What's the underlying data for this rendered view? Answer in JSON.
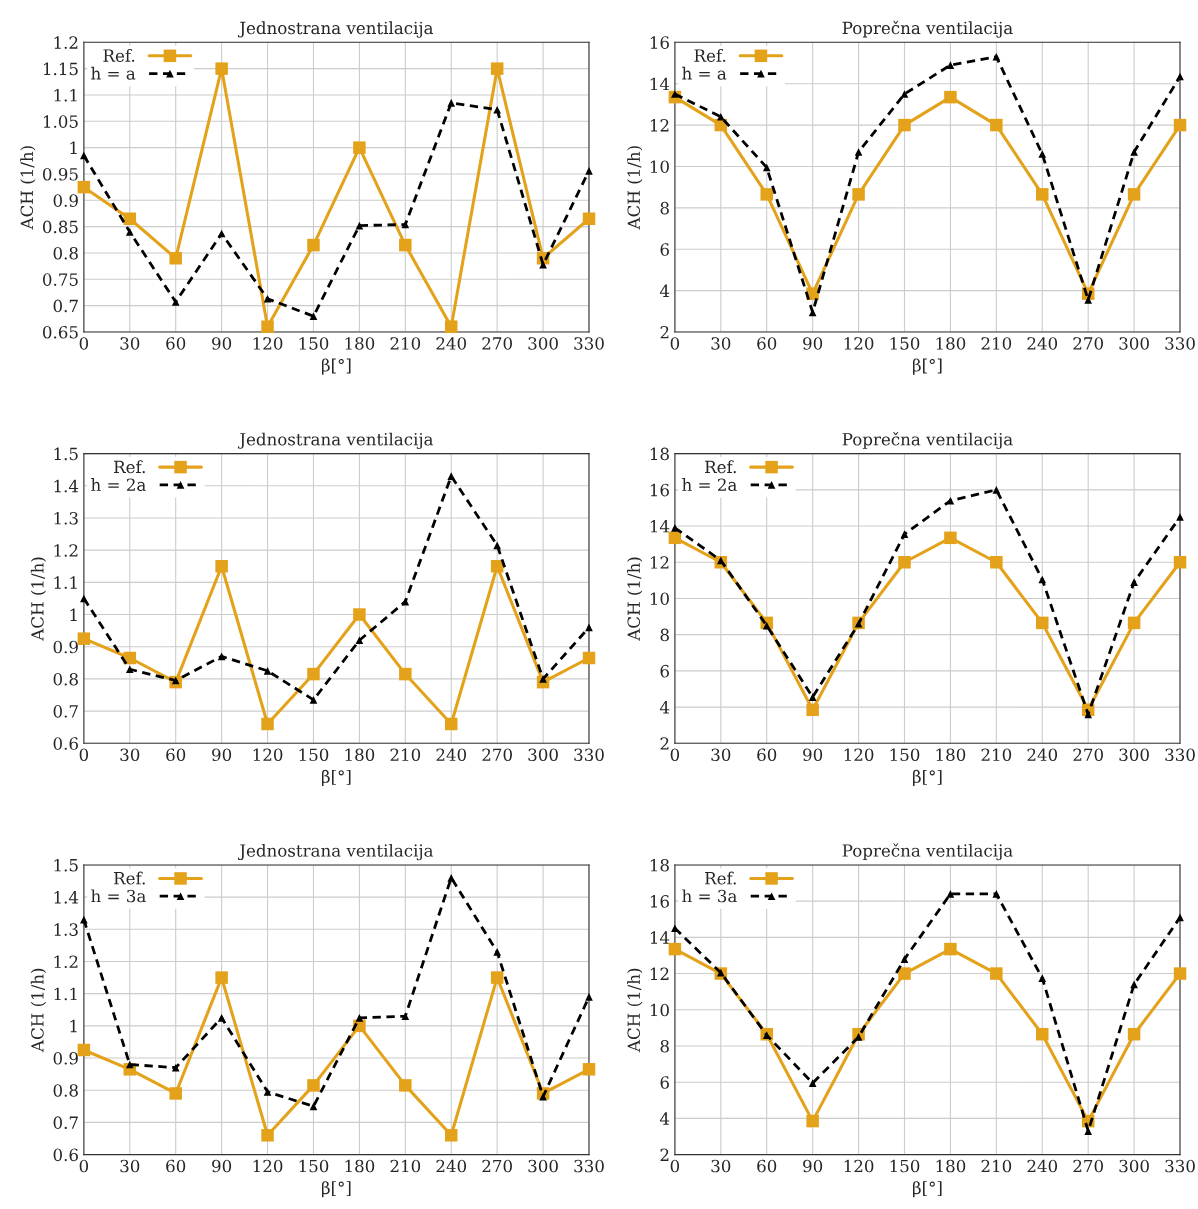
{
  "chart_data": [
    {
      "type": "line",
      "title": "Jednostrana ventilacija",
      "xlabel": "β[°]",
      "ylabel": "ACH (1/h)",
      "x": [
        0,
        30,
        60,
        90,
        120,
        150,
        180,
        210,
        240,
        270,
        300,
        330
      ],
      "xlim": [
        0,
        330
      ],
      "xticks": [
        0,
        30,
        60,
        90,
        120,
        150,
        180,
        210,
        240,
        270,
        300,
        330
      ],
      "ylim": [
        0.65,
        1.2
      ],
      "yticks": [
        0.65,
        0.7,
        0.75,
        0.8,
        0.85,
        0.9,
        0.95,
        1,
        1.05,
        1.1,
        1.15,
        1.2
      ],
      "grid": true,
      "legend": "top left",
      "series": [
        {
          "name": "Ref.",
          "color": "#e3a21a",
          "marker": "square",
          "line_style": "solid",
          "values": [
            0.925,
            0.865,
            0.79,
            1.15,
            0.66,
            0.815,
            1,
            0.815,
            0.66,
            1.15,
            0.79,
            0.865
          ]
        },
        {
          "name": "h = a",
          "color": "#000000",
          "marker": "triangle",
          "line_style": "dashed",
          "values": [
            0.985,
            0.84,
            0.707,
            0.837,
            0.713,
            0.68,
            0.852,
            0.854,
            1.085,
            1.072,
            0.778,
            0.956
          ]
        }
      ]
    },
    {
      "type": "line",
      "title": "Poprečna ventilacija",
      "xlabel": "β[°]",
      "ylabel": "ACH (1/h)",
      "x": [
        0,
        30,
        60,
        90,
        120,
        150,
        180,
        210,
        240,
        270,
        300,
        330
      ],
      "xlim": [
        0,
        330
      ],
      "xticks": [
        0,
        30,
        60,
        90,
        120,
        150,
        180,
        210,
        240,
        270,
        300,
        330
      ],
      "ylim": [
        2,
        16
      ],
      "yticks": [
        2,
        4,
        6,
        8,
        10,
        12,
        14,
        16
      ],
      "grid": true,
      "legend": "top left",
      "series": [
        {
          "name": "Ref.",
          "color": "#e3a21a",
          "marker": "square",
          "line_style": "solid",
          "values": [
            13.35,
            12,
            8.65,
            3.85,
            8.65,
            12,
            13.35,
            12,
            8.65,
            3.85,
            8.65,
            12
          ]
        },
        {
          "name": "h = a",
          "color": "#000000",
          "marker": "triangle",
          "line_style": "dashed",
          "values": [
            13.5,
            12.4,
            9.95,
            2.95,
            10.7,
            13.5,
            14.9,
            15.3,
            10.6,
            3.55,
            10.7,
            14.35
          ]
        }
      ]
    },
    {
      "type": "line",
      "title": "Jednostrana ventilacija",
      "xlabel": "β[°]",
      "ylabel": "ACH (1/h)",
      "x": [
        0,
        30,
        60,
        90,
        120,
        150,
        180,
        210,
        240,
        270,
        300,
        330
      ],
      "xlim": [
        0,
        330
      ],
      "xticks": [
        0,
        30,
        60,
        90,
        120,
        150,
        180,
        210,
        240,
        270,
        300,
        330
      ],
      "ylim": [
        0.6,
        1.5
      ],
      "yticks": [
        0.6,
        0.7,
        0.8,
        0.9,
        1,
        1.1,
        1.2,
        1.3,
        1.4,
        1.5
      ],
      "grid": true,
      "legend": "top left",
      "series": [
        {
          "name": "Ref.",
          "color": "#e3a21a",
          "marker": "square",
          "line_style": "solid",
          "values": [
            0.925,
            0.865,
            0.79,
            1.15,
            0.66,
            0.815,
            1,
            0.815,
            0.66,
            1.15,
            0.79,
            0.865
          ]
        },
        {
          "name": "h = 2a",
          "color": "#000000",
          "marker": "triangle",
          "line_style": "dashed",
          "values": [
            1.05,
            0.83,
            0.795,
            0.87,
            0.825,
            0.735,
            0.92,
            1.04,
            1.43,
            1.215,
            0.8,
            0.96
          ]
        }
      ]
    },
    {
      "type": "line",
      "title": "Poprečna ventilacija",
      "xlabel": "β[°]",
      "ylabel": "ACH (1/h)",
      "x": [
        0,
        30,
        60,
        90,
        120,
        150,
        180,
        210,
        240,
        270,
        300,
        330
      ],
      "xlim": [
        0,
        330
      ],
      "xticks": [
        0,
        30,
        60,
        90,
        120,
        150,
        180,
        210,
        240,
        270,
        300,
        330
      ],
      "ylim": [
        2,
        18
      ],
      "yticks": [
        2,
        4,
        6,
        8,
        10,
        12,
        14,
        16,
        18
      ],
      "grid": true,
      "legend": "top left",
      "series": [
        {
          "name": "Ref.",
          "color": "#e3a21a",
          "marker": "square",
          "line_style": "solid",
          "values": [
            13.35,
            12,
            8.65,
            3.85,
            8.65,
            12,
            13.35,
            12,
            8.65,
            3.85,
            8.65,
            12
          ]
        },
        {
          "name": "h = 2a",
          "color": "#000000",
          "marker": "triangle",
          "line_style": "dashed",
          "values": [
            13.9,
            12.1,
            8.5,
            4.55,
            8.6,
            13.55,
            15.4,
            16,
            11.05,
            3.6,
            10.9,
            14.5
          ]
        }
      ]
    },
    {
      "type": "line",
      "title": "Jednostrana ventilacija",
      "xlabel": "β[°]",
      "ylabel": "ACH (1/h)",
      "x": [
        0,
        30,
        60,
        90,
        120,
        150,
        180,
        210,
        240,
        270,
        300,
        330
      ],
      "xlim": [
        0,
        330
      ],
      "xticks": [
        0,
        30,
        60,
        90,
        120,
        150,
        180,
        210,
        240,
        270,
        300,
        330
      ],
      "ylim": [
        0.6,
        1.5
      ],
      "yticks": [
        0.6,
        0.7,
        0.8,
        0.9,
        1,
        1.1,
        1.2,
        1.3,
        1.4,
        1.5
      ],
      "grid": true,
      "legend": "top left",
      "series": [
        {
          "name": "Ref.",
          "color": "#e3a21a",
          "marker": "square",
          "line_style": "solid",
          "values": [
            0.925,
            0.865,
            0.79,
            1.15,
            0.66,
            0.815,
            1,
            0.815,
            0.66,
            1.15,
            0.79,
            0.865
          ]
        },
        {
          "name": "h = 3a",
          "color": "#000000",
          "marker": "triangle",
          "line_style": "dashed",
          "values": [
            1.33,
            0.88,
            0.87,
            1.025,
            0.795,
            0.75,
            1.025,
            1.03,
            1.46,
            1.23,
            0.78,
            1.09
          ]
        }
      ]
    },
    {
      "type": "line",
      "title": "Poprečna ventilacija",
      "xlabel": "β[°]",
      "ylabel": "ACH (1/h)",
      "x": [
        0,
        30,
        60,
        90,
        120,
        150,
        180,
        210,
        240,
        270,
        300,
        330
      ],
      "xlim": [
        0,
        330
      ],
      "xticks": [
        0,
        30,
        60,
        90,
        120,
        150,
        180,
        210,
        240,
        270,
        300,
        330
      ],
      "ylim": [
        2,
        18
      ],
      "yticks": [
        2,
        4,
        6,
        8,
        10,
        12,
        14,
        16,
        18
      ],
      "grid": true,
      "legend": "top left",
      "series": [
        {
          "name": "Ref.",
          "color": "#e3a21a",
          "marker": "square",
          "line_style": "solid",
          "values": [
            13.35,
            12,
            8.65,
            3.85,
            8.65,
            12,
            13.35,
            12,
            8.65,
            3.85,
            8.65,
            12
          ]
        },
        {
          "name": "h = 3a",
          "color": "#000000",
          "marker": "triangle",
          "line_style": "dashed",
          "values": [
            14.5,
            12.05,
            8.6,
            5.95,
            8.5,
            12.8,
            16.4,
            16.4,
            11.75,
            3.3,
            11.4,
            15.1
          ]
        }
      ]
    }
  ]
}
